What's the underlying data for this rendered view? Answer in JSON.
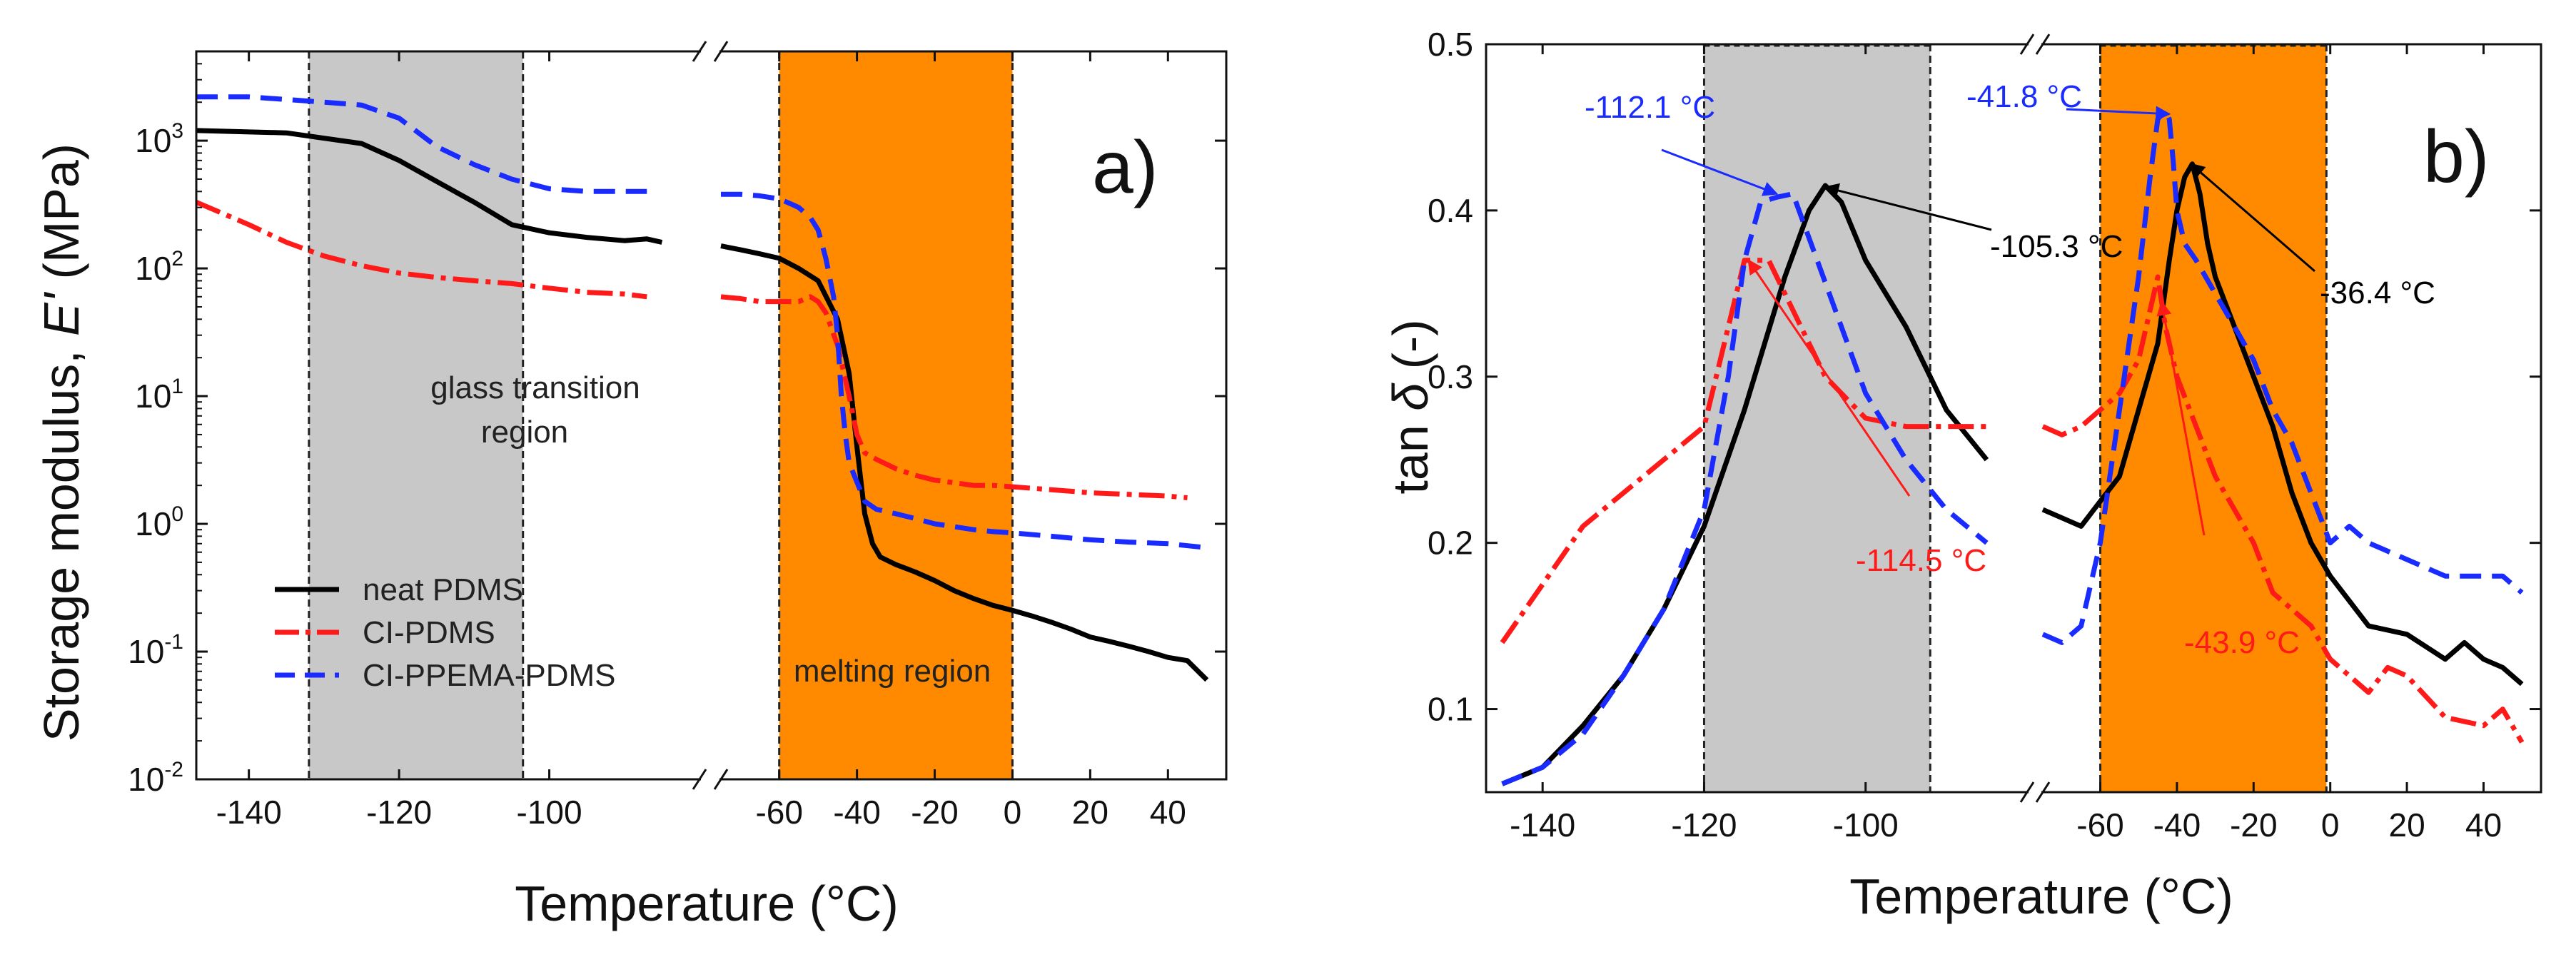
{
  "chart_data": [
    {
      "type": "line",
      "panel_label": "a)",
      "xlabel": "Temperature (°C)",
      "ylabel_prefix": "Storage modulus, ",
      "ylabel_symbol": "E'",
      "ylabel_suffix": " (MPa)",
      "yscale": "log",
      "ylim": [
        0.01,
        5000
      ],
      "xlim_left": [
        -147,
        -80
      ],
      "xlim_right": [
        -75,
        55
      ],
      "xbreak": [
        -85,
        -75
      ],
      "xticks": [
        -140,
        -120,
        -100,
        -60,
        -40,
        -20,
        0,
        20,
        40
      ],
      "xtick_labels": [
        "-140",
        "-120",
        "-100",
        "-60",
        "-40",
        "-20",
        "0",
        "20",
        "40"
      ],
      "yticks": [
        {
          "value": 0.01,
          "base": "10",
          "exp": "-2"
        },
        {
          "value": 0.1,
          "base": "10",
          "exp": "-1"
        },
        {
          "value": 1,
          "base": "10",
          "exp": "0"
        },
        {
          "value": 10,
          "base": "10",
          "exp": "1"
        },
        {
          "value": 100,
          "base": "10",
          "exp": "2"
        },
        {
          "value": 1000,
          "base": "10",
          "exp": "3"
        }
      ],
      "regions": [
        {
          "name": "glass transition",
          "from": -132,
          "to": -103.5,
          "color": "#c8c8c8",
          "label_lines": [
            "glass transition",
            "region"
          ]
        },
        {
          "name": "melting",
          "from": -60,
          "to": 0,
          "color": "#ff8a00",
          "label_lines": [
            "melting region"
          ]
        }
      ],
      "series": [
        {
          "name": "neat PDMS",
          "color": "#000000",
          "dash": "solid",
          "x": [
            -147,
            -135,
            -125,
            -120,
            -115,
            -110,
            -105,
            -100,
            -95,
            -90,
            -87,
            -85
          ],
          "y": [
            1200,
            1150,
            950,
            700,
            480,
            330,
            220,
            190,
            175,
            165,
            170,
            160
          ],
          "x2": [
            -75,
            -70,
            -65,
            -60,
            -55,
            -50,
            -45,
            -42,
            -40,
            -38,
            -36,
            -34,
            -30,
            -25,
            -20,
            -15,
            -10,
            -5,
            0,
            5,
            10,
            15,
            20,
            25,
            30,
            35,
            40,
            45,
            50
          ],
          "y2": [
            150,
            140,
            130,
            120,
            100,
            80,
            40,
            15,
            4,
            1.2,
            0.7,
            0.55,
            0.48,
            0.42,
            0.36,
            0.3,
            0.26,
            0.23,
            0.21,
            0.19,
            0.17,
            0.15,
            0.13,
            0.12,
            0.11,
            0.1,
            0.09,
            0.085,
            0.06
          ]
        },
        {
          "name": "CI-PDMS",
          "color": "#ff1a1a",
          "dash": "dashdot",
          "x": [
            -147,
            -140,
            -135,
            -130,
            -125,
            -120,
            -115,
            -110,
            -105,
            -100,
            -95,
            -90,
            -87
          ],
          "y": [
            330,
            220,
            160,
            125,
            105,
            92,
            85,
            80,
            76,
            70,
            65,
            63,
            60
          ],
          "x2": [
            -75,
            -70,
            -65,
            -60,
            -55,
            -52,
            -50,
            -48,
            -45,
            -42,
            -40,
            -38,
            -35,
            -30,
            -25,
            -20,
            -15,
            -10,
            -5,
            0,
            10,
            20,
            30,
            40,
            45
          ],
          "y2": [
            60,
            58,
            55,
            55,
            55,
            60,
            55,
            45,
            25,
            10,
            5,
            3.6,
            3.2,
            2.7,
            2.4,
            2.2,
            2.1,
            2.0,
            2.0,
            1.95,
            1.85,
            1.75,
            1.7,
            1.65,
            1.6
          ]
        },
        {
          "name": "CI-PPEMA-PDMS",
          "color": "#1a2bff",
          "dash": "dashed",
          "x": [
            -147,
            -140,
            -135,
            -130,
            -125,
            -120,
            -115,
            -110,
            -105,
            -100,
            -95,
            -90,
            -87
          ],
          "y": [
            2200,
            2200,
            2100,
            2000,
            1900,
            1500,
            900,
            650,
            500,
            420,
            400,
            400,
            400
          ],
          "x2": [
            -75,
            -70,
            -65,
            -60,
            -57,
            -55,
            -52,
            -50,
            -48,
            -46,
            -45,
            -44,
            -43,
            -42,
            -38,
            -35,
            -30,
            -25,
            -20,
            -15,
            -10,
            -5,
            0,
            10,
            20,
            30,
            40,
            50
          ],
          "y2": [
            380,
            380,
            370,
            350,
            320,
            300,
            250,
            200,
            120,
            60,
            30,
            10,
            5,
            3,
            1.5,
            1.3,
            1.2,
            1.1,
            1.0,
            0.95,
            0.9,
            0.87,
            0.85,
            0.8,
            0.75,
            0.72,
            0.7,
            0.65
          ]
        }
      ],
      "legend": [
        "neat PDMS",
        "CI-PDMS",
        "CI-PPEMA-PDMS"
      ],
      "legend_position": "bottom-left"
    },
    {
      "type": "line",
      "panel_label": "b)",
      "xlabel": "Temperature (°C)",
      "ylabel_prefix": "tan ",
      "ylabel_symbol": "δ",
      "ylabel_suffix": " (-)",
      "yscale": "linear",
      "ylim": [
        0.05,
        0.5
      ],
      "xlim_left": [
        -147,
        -80
      ],
      "xlim_right": [
        -75,
        55
      ],
      "xbreak": [
        -85,
        -75
      ],
      "xticks": [
        -140,
        -120,
        -100,
        -60,
        -40,
        -20,
        0,
        20,
        40
      ],
      "xtick_labels": [
        "-140",
        "-120",
        "-100",
        "-60",
        "-40",
        "-20",
        "0",
        "20",
        "40"
      ],
      "yticks": [
        0.1,
        0.2,
        0.3,
        0.4,
        0.5
      ],
      "ytick_labels": [
        "0.1",
        "0.2",
        "0.3",
        "0.4",
        "0.5"
      ],
      "regions": [
        {
          "name": "glass transition",
          "from": -120,
          "to": -92,
          "color": "#c8c8c8"
        },
        {
          "name": "melting",
          "from": -60,
          "to": -1,
          "color": "#ff8a00"
        }
      ],
      "series": [
        {
          "name": "neat PDMS",
          "color": "#000000",
          "dash": "solid",
          "x": [
            -145,
            -140,
            -135,
            -130,
            -125,
            -120,
            -115,
            -110,
            -107,
            -105,
            -103,
            -100,
            -95,
            -90,
            -85
          ],
          "y": [
            0.055,
            0.065,
            0.09,
            0.12,
            0.16,
            0.21,
            0.28,
            0.36,
            0.4,
            0.415,
            0.405,
            0.37,
            0.33,
            0.28,
            0.25
          ],
          "x2": [
            -75,
            -70,
            -65,
            -60,
            -55,
            -50,
            -45,
            -42,
            -40,
            -38,
            -36,
            -34,
            -32,
            -30,
            -25,
            -20,
            -15,
            -10,
            -5,
            0,
            10,
            20,
            30,
            35,
            40,
            45,
            50
          ],
          "y2": [
            0.22,
            0.215,
            0.21,
            0.225,
            0.24,
            0.28,
            0.32,
            0.37,
            0.4,
            0.42,
            0.428,
            0.41,
            0.38,
            0.36,
            0.33,
            0.3,
            0.27,
            0.23,
            0.2,
            0.18,
            0.15,
            0.145,
            0.13,
            0.14,
            0.13,
            0.125,
            0.115
          ]
        },
        {
          "name": "CI-PDMS",
          "color": "#ff1a1a",
          "dash": "dashdot",
          "x": [
            -145,
            -140,
            -135,
            -130,
            -125,
            -120,
            -117,
            -115,
            -112,
            -110,
            -108,
            -105,
            -100,
            -95,
            -90,
            -85
          ],
          "y": [
            0.14,
            0.175,
            0.21,
            0.23,
            0.25,
            0.27,
            0.33,
            0.37,
            0.37,
            0.35,
            0.33,
            0.3,
            0.275,
            0.27,
            0.27,
            0.27
          ],
          "x2": [
            -75,
            -70,
            -65,
            -60,
            -55,
            -50,
            -47,
            -45,
            -43,
            -40,
            -35,
            -30,
            -25,
            -20,
            -15,
            -10,
            -5,
            0,
            5,
            10,
            15,
            20,
            30,
            40,
            45,
            50
          ],
          "y2": [
            0.27,
            0.265,
            0.27,
            0.28,
            0.29,
            0.31,
            0.34,
            0.36,
            0.33,
            0.3,
            0.27,
            0.24,
            0.22,
            0.2,
            0.17,
            0.16,
            0.15,
            0.13,
            0.12,
            0.11,
            0.125,
            0.12,
            0.095,
            0.09,
            0.1,
            0.08
          ]
        },
        {
          "name": "CI-PPEMA-PDMS",
          "color": "#1a2bff",
          "dash": "dashed",
          "x": [
            -145,
            -140,
            -135,
            -130,
            -125,
            -120,
            -117,
            -115,
            -113,
            -111,
            -109,
            -106,
            -103,
            -100,
            -95,
            -90,
            -85
          ],
          "y": [
            0.055,
            0.065,
            0.085,
            0.12,
            0.16,
            0.22,
            0.3,
            0.37,
            0.405,
            0.408,
            0.41,
            0.37,
            0.33,
            0.29,
            0.25,
            0.22,
            0.2
          ],
          "x2": [
            -75,
            -70,
            -65,
            -60,
            -55,
            -50,
            -47,
            -45,
            -43,
            -42,
            -41,
            -40,
            -38,
            -35,
            -30,
            -25,
            -20,
            -15,
            -10,
            -5,
            0,
            5,
            10,
            20,
            30,
            40,
            45,
            50
          ],
          "y2": [
            0.145,
            0.14,
            0.15,
            0.2,
            0.28,
            0.36,
            0.42,
            0.455,
            0.46,
            0.455,
            0.43,
            0.4,
            0.38,
            0.37,
            0.35,
            0.33,
            0.31,
            0.28,
            0.26,
            0.23,
            0.2,
            0.21,
            0.2,
            0.19,
            0.18,
            0.18,
            0.18,
            0.17
          ]
        }
      ],
      "annotations": [
        {
          "text": "-112.1 °C",
          "color": "#1a2bff",
          "target": [
            -111,
            0.41
          ]
        },
        {
          "text": "-105.3 °C",
          "color": "#000000",
          "target": [
            -105,
            0.414
          ]
        },
        {
          "text": "-114.5 °C",
          "color": "#ff1a1a",
          "target": [
            -114.5,
            0.37
          ]
        },
        {
          "text": "-41.8 °C",
          "color": "#1a2bff",
          "target": [
            -42,
            0.458
          ]
        },
        {
          "text": "-36.4 °C",
          "color": "#000000",
          "target": [
            -36.4,
            0.428
          ]
        },
        {
          "text": "-43.9 °C",
          "color": "#ff1a1a",
          "target": [
            -44,
            0.345
          ]
        }
      ]
    }
  ]
}
